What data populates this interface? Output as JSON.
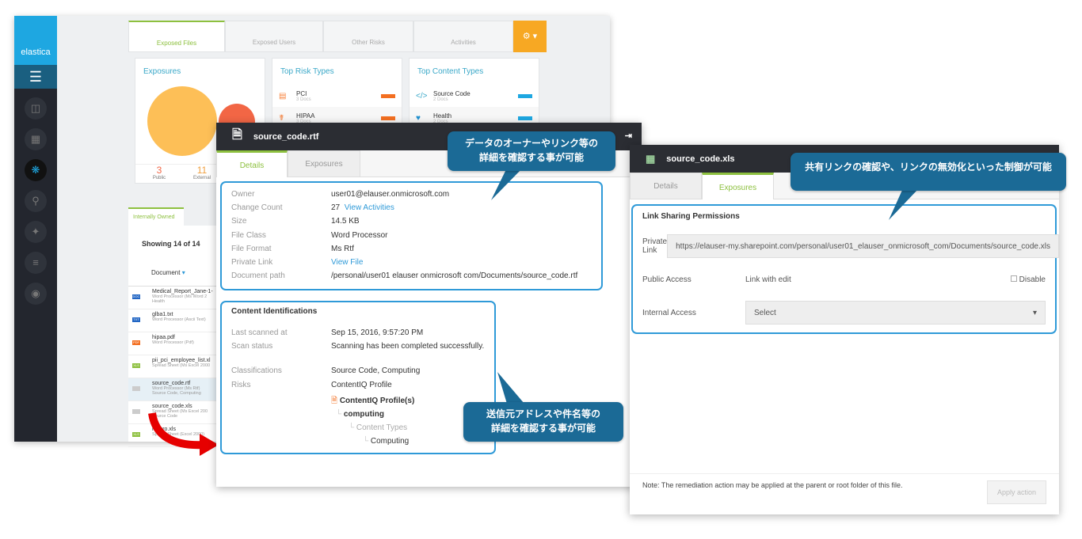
{
  "app": {
    "brand": "elastica"
  },
  "sidebar": {
    "icons": [
      "basket-icon",
      "dashboard-icon",
      "securlets-icon",
      "investigate-icon",
      "compass-icon",
      "sliders-icon",
      "eye-icon"
    ]
  },
  "main_tabs": [
    {
      "label": "Exposed Files",
      "active": true
    },
    {
      "label": "Exposed Users"
    },
    {
      "label": "Other Risks"
    },
    {
      "label": "Activities"
    }
  ],
  "exposures": {
    "title": "Exposures",
    "public_count": "3",
    "public_label": "Public",
    "external_count": "11",
    "external_label": "External",
    "colors": {
      "public": "#f26645",
      "external": "#fdbf57"
    }
  },
  "risk_types": {
    "title": "Top Risk Types",
    "items": [
      {
        "name": "PCI",
        "docs": "3 Docs"
      },
      {
        "name": "HIPAA",
        "docs": "3 Docs"
      }
    ]
  },
  "content_types": {
    "title": "Top Content Types",
    "items": [
      {
        "name": "Source Code",
        "docs": "2 Docs"
      },
      {
        "name": "Health",
        "docs": "2 Docs"
      }
    ]
  },
  "list": {
    "tab": "Internally Owned",
    "showing": "Showing 14 of 14",
    "column": "Document",
    "rows": [
      {
        "name": "Medical_Report_Jane-1-",
        "type": "Word Processor (Ms Word 2",
        "extra": "Health",
        "badge": "DOC"
      },
      {
        "name": "glba1.txt",
        "type": "Word Processor (Ascii Text)",
        "extra": "",
        "badge": "TXT"
      },
      {
        "name": "hipaa.pdf",
        "type": "Word Processor (Pdf)",
        "extra": "",
        "badge": "PDF"
      },
      {
        "name": "pii_pci_employee_list.xl",
        "type": "Spread Sheet (Ms Excel 2000",
        "extra": "",
        "badge": "XLS"
      },
      {
        "name": "source_code.rtf",
        "type": "Word Processor (Ms Rtf)",
        "extra": "Source Code, Computing",
        "badge": ""
      },
      {
        "name": "source_code.xls",
        "type": "Spread Sheet (Ms Excel 200",
        "extra": "Source Code",
        "badge": ""
      },
      {
        "name": "macro.xls",
        "type": "Spread Sheet (Excel 2000)",
        "extra": "",
        "badge": "XLS"
      }
    ]
  },
  "details_panel": {
    "title": "source_code.rtf",
    "tabs": [
      "Details",
      "Exposures"
    ],
    "fields": [
      {
        "k": "Owner",
        "v": "user01@elauser.onmicrosoft.com"
      },
      {
        "k": "Change Count",
        "v": "27",
        "link": "View Activities"
      },
      {
        "k": "Size",
        "v": "14.5 KB"
      },
      {
        "k": "File Class",
        "v": "Word Processor"
      },
      {
        "k": "File Format",
        "v": "Ms Rtf"
      },
      {
        "k": "Private Link",
        "link": "View File"
      },
      {
        "k": "Document path",
        "v": "/personal/user01 elauser onmicrosoft com/Documents/source_code.rtf"
      }
    ],
    "content": {
      "title": "Content Identifications",
      "last_scanned_label": "Last scanned at",
      "last_scanned": "Sep 15, 2016, 9:57:20 PM",
      "scan_status_label": "Scan status",
      "scan_status": "Scanning has been completed successfully.",
      "classifications_label": "Classifications",
      "classifications": "Source Code, Computing",
      "risks_label": "Risks",
      "risks": "ContentIQ Profile",
      "tree": [
        "ContentIQ Profile(s)",
        "computing",
        "Content Types",
        "Computing"
      ]
    }
  },
  "exposure_panel": {
    "title": "source_code.xls",
    "tabs": [
      "Details",
      "Exposures"
    ],
    "section": "Link Sharing Permissions",
    "private_link_label": "Private Link",
    "private_link": "https://elauser-my.sharepoint.com/personal/user01_elauser_onmicrosoft_com/Documents/source_code.xls",
    "public_access_label": "Public Access",
    "public_access": "Link with edit",
    "disable_label": "Disable",
    "internal_access_label": "Internal Access",
    "internal_access": "Select",
    "note": "Note: The remediation action may be applied at the parent or root folder of this file.",
    "apply": "Apply action"
  },
  "callouts": {
    "c1": "データのオーナーやリンク等の\n詳細を確認する事が可能",
    "c2": "送信元アドレスや件名等の\n詳細を確認する事が可能",
    "c3": "共有リンクの確認や、リンクの無効化といった制御が可能"
  },
  "colors": {
    "accent": "#8dc03f",
    "callout": "#1b6a96",
    "highlight": "#2f9ad8",
    "gear": "#f7a823"
  }
}
